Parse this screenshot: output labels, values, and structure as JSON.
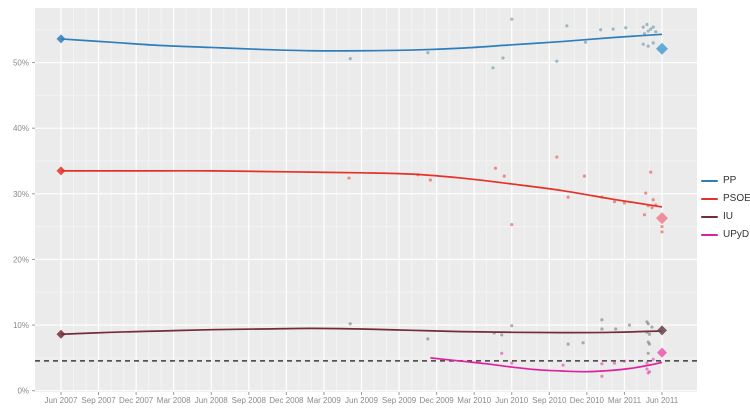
{
  "chart_data": {
    "type": "scatter",
    "title": "",
    "xlabel": "",
    "ylabel": "",
    "panel_bg": "#ebebeb",
    "grid_major_color": "#ffffff",
    "grid_minor_color": "#f3f3f3",
    "axis_text_color": "#8a8a8a",
    "x_axis": {
      "tick_labels": [
        "Jun 2007",
        "Sep 2007",
        "Dec 2007",
        "Mar 2008",
        "Jun 2008",
        "Sep 2008",
        "Dec 2008",
        "Mar 2009",
        "Jun 2009",
        "Sep 2009",
        "Dec 2009",
        "Mar 2010",
        "Jun 2010",
        "Sep 2010",
        "Dec 2010",
        "Mar 2011",
        "Jun 2011"
      ],
      "tick_months": [
        0,
        3,
        6,
        9,
        12,
        15,
        18,
        21,
        24,
        27,
        30,
        33,
        36,
        39,
        42,
        45,
        48
      ],
      "domain_months": 48
    },
    "y_axis": {
      "tick_labels": [
        "0%",
        "10%",
        "20%",
        "30%",
        "40%",
        "50%"
      ],
      "tick_values": [
        0,
        10,
        20,
        30,
        40,
        50
      ],
      "minor_values": [
        5,
        15,
        25,
        35,
        45,
        55
      ],
      "ylim": [
        0,
        58.3
      ]
    },
    "threshold_line": {
      "value": 5,
      "style": "dashed",
      "color": "#3d3d3d"
    },
    "legend": {
      "position": "right",
      "entries": [
        "PP",
        "PSOE",
        "IU",
        "UPyD"
      ]
    },
    "series": [
      {
        "name": "PP",
        "color": "#2f7ebc",
        "point_color": "#4e7f9e",
        "end_marker_color": "#55a2d4",
        "trend": [
          [
            0,
            53.6
          ],
          [
            4,
            53.1
          ],
          [
            8,
            52.6
          ],
          [
            12,
            52.3
          ],
          [
            16,
            52.0
          ],
          [
            20,
            51.8
          ],
          [
            24,
            51.8
          ],
          [
            28,
            51.9
          ],
          [
            32,
            52.2
          ],
          [
            36,
            52.7
          ],
          [
            40,
            53.2
          ],
          [
            44,
            53.8
          ],
          [
            48,
            54.3
          ]
        ],
        "points": [
          [
            23.1,
            50.6
          ],
          [
            29.3,
            51.5
          ],
          [
            34.5,
            49.2
          ],
          [
            35.3,
            50.7
          ],
          [
            36.0,
            56.6
          ],
          [
            39.6,
            50.2
          ],
          [
            40.4,
            55.6
          ],
          [
            41.9,
            53.1
          ],
          [
            43.1,
            55.0
          ],
          [
            44.1,
            55.1
          ],
          [
            45.1,
            55.3
          ],
          [
            46.5,
            55.4
          ],
          [
            46.8,
            55.8
          ],
          [
            47.1,
            55.1
          ],
          [
            46.9,
            54.8
          ],
          [
            47.3,
            55.4
          ],
          [
            47.5,
            54.7
          ],
          [
            46.6,
            54.4
          ],
          [
            46.5,
            52.8
          ],
          [
            46.9,
            52.5
          ],
          [
            47.3,
            53.0
          ]
        ],
        "start_marker": [
          0,
          53.6
        ],
        "end_marker": [
          48,
          52.1
        ]
      },
      {
        "name": "PSOE",
        "color": "#e53228",
        "point_color": "#e53228",
        "end_marker_color": "#ef8391",
        "trend": [
          [
            0,
            33.5
          ],
          [
            4,
            33.5
          ],
          [
            8,
            33.5
          ],
          [
            12,
            33.5
          ],
          [
            16,
            33.4
          ],
          [
            20,
            33.3
          ],
          [
            24,
            33.2
          ],
          [
            28,
            33.0
          ],
          [
            32,
            32.4
          ],
          [
            36,
            31.5
          ],
          [
            40,
            30.5
          ],
          [
            44,
            29.2
          ],
          [
            46,
            28.6
          ],
          [
            48,
            28.0
          ]
        ],
        "points": [
          [
            23.0,
            32.4
          ],
          [
            28.5,
            32.9
          ],
          [
            29.5,
            32.1
          ],
          [
            34.7,
            33.9
          ],
          [
            35.4,
            32.7
          ],
          [
            36.0,
            25.3
          ],
          [
            39.6,
            35.6
          ],
          [
            40.5,
            29.5
          ],
          [
            41.8,
            32.7
          ],
          [
            43.2,
            29.5
          ],
          [
            44.2,
            28.8
          ],
          [
            45.0,
            28.6
          ],
          [
            46.7,
            30.1
          ],
          [
            47.1,
            33.3
          ],
          [
            47.3,
            29.1
          ],
          [
            46.9,
            28.2
          ],
          [
            47.2,
            27.9
          ],
          [
            47.5,
            28.3
          ],
          [
            46.6,
            26.8
          ],
          [
            48,
            25.0
          ],
          [
            48,
            24.2
          ]
        ],
        "start_marker": [
          0,
          33.5
        ],
        "end_marker": [
          48,
          26.3
        ]
      },
      {
        "name": "IU",
        "color": "#742d38",
        "point_color": "#666666",
        "end_marker_color": "#6b4a52",
        "trend": [
          [
            0,
            8.6
          ],
          [
            4,
            8.9
          ],
          [
            8,
            9.1
          ],
          [
            12,
            9.3
          ],
          [
            16,
            9.4
          ],
          [
            20,
            9.5
          ],
          [
            24,
            9.4
          ],
          [
            28,
            9.2
          ],
          [
            32,
            9.0
          ],
          [
            36,
            8.9
          ],
          [
            40,
            8.85
          ],
          [
            44,
            8.9
          ],
          [
            48,
            9.1
          ]
        ],
        "points": [
          [
            23.1,
            10.2
          ],
          [
            29.3,
            7.9
          ],
          [
            34.6,
            8.8
          ],
          [
            35.2,
            8.5
          ],
          [
            36.0,
            9.9
          ],
          [
            40.5,
            7.1
          ],
          [
            41.7,
            7.3
          ],
          [
            43.2,
            10.8
          ],
          [
            43.2,
            9.4
          ],
          [
            44.3,
            9.4
          ],
          [
            45.4,
            10.0
          ],
          [
            46.8,
            10.5
          ],
          [
            46.9,
            10.2
          ],
          [
            47.2,
            9.7
          ],
          [
            46.8,
            8.9
          ],
          [
            47.0,
            8.6
          ],
          [
            46.9,
            7.4
          ],
          [
            47.0,
            7.1
          ],
          [
            46.9,
            5.7
          ]
        ],
        "start_marker": [
          0,
          8.6
        ],
        "end_marker": [
          48,
          9.2
        ]
      },
      {
        "name": "UPyD",
        "color": "#e0219e",
        "point_color": "#e0219e",
        "end_marker_color": "#ec5fb1",
        "trend": [
          [
            29.5,
            5.0
          ],
          [
            32,
            4.5
          ],
          [
            34,
            4.1
          ],
          [
            36,
            3.6
          ],
          [
            38,
            3.2
          ],
          [
            40,
            3.0
          ],
          [
            42,
            2.9
          ],
          [
            44,
            3.1
          ],
          [
            45.5,
            3.4
          ],
          [
            47,
            3.9
          ],
          [
            48,
            4.3
          ]
        ],
        "points": [
          [
            35.2,
            5.7
          ],
          [
            36.0,
            4.2
          ],
          [
            40.1,
            3.9
          ],
          [
            43.2,
            2.2
          ],
          [
            43.2,
            4.1
          ],
          [
            44.2,
            4.2
          ],
          [
            45.0,
            4.5
          ],
          [
            46.8,
            3.3
          ],
          [
            46.9,
            2.7
          ],
          [
            47.0,
            2.9
          ],
          [
            46.8,
            4.2
          ],
          [
            47.3,
            4.8
          ]
        ],
        "start_marker": null,
        "end_marker": [
          48,
          5.8
        ]
      }
    ]
  }
}
